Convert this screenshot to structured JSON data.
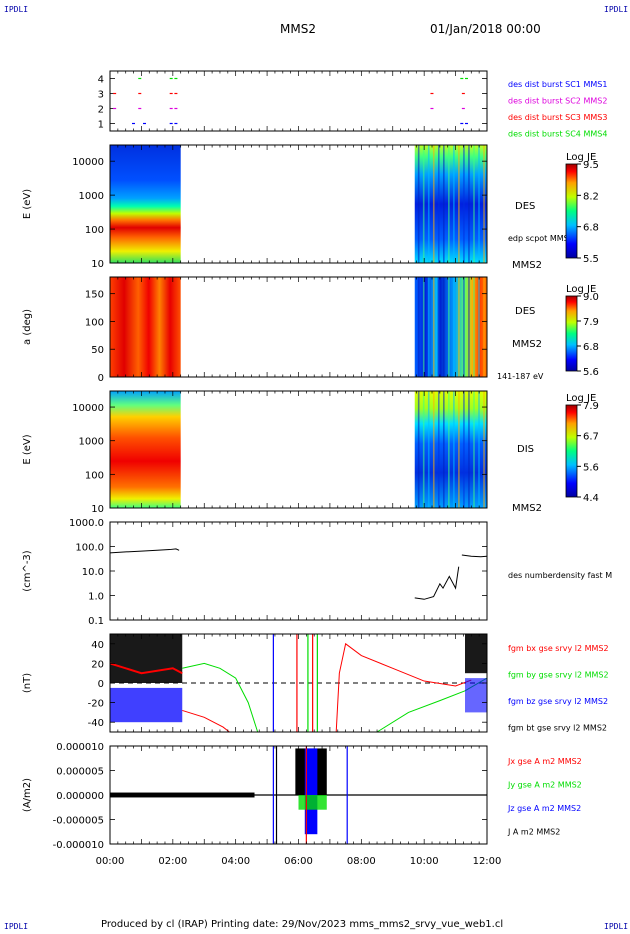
{
  "header": {
    "corner_label": "IPDLI",
    "spacecraft": "MMS2",
    "datetime": "01/Jan/2018 00:00"
  },
  "footer": {
    "text": "Produced by cl (IRAP)   Printing date: 29/Nov/2023   mms_mms2_srvy_vue_web1.cl"
  },
  "colors": {
    "series_red": "#ff0000",
    "series_green": "#00dd00",
    "series_blue": "#0000ff",
    "series_magenta": "#dd00dd",
    "series_black": "#000000"
  },
  "chart_data": [
    {
      "type": "scatter",
      "panel": "burst",
      "ylim": [
        0.5,
        4.5
      ],
      "yticks": [
        "1",
        "2",
        "3",
        "4"
      ],
      "series": [
        {
          "name": "des dist burst SC1 MMS1",
          "color": "#0000ff",
          "level": 1,
          "x": [
            0.7,
            1.05,
            1.9,
            2.05,
            11.15,
            11.3
          ]
        },
        {
          "name": "des dist burst SC2 MMS2",
          "color": "#dd00dd",
          "level": 2,
          "x": [
            0.1,
            0.9,
            1.9,
            2.05,
            10.2,
            11.2
          ]
        },
        {
          "name": "des dist burst SC3 MMS3",
          "color": "#ff0000",
          "level": 3,
          "x": [
            0.1,
            0.9,
            1.9,
            2.05,
            10.2,
            11.2
          ]
        },
        {
          "name": "des dist burst SC4 MMS4",
          "color": "#00dd00",
          "level": 4,
          "x": [
            0.9,
            1.9,
            2.05,
            11.15,
            11.3
          ]
        }
      ]
    },
    {
      "type": "heatmap",
      "panel": "des_energy",
      "ylabel": "E (eV)",
      "ylog": true,
      "ylim": [
        10,
        30000
      ],
      "yticks": [
        "10",
        "100",
        "1000",
        "10000"
      ],
      "intervals": [
        [
          0.0,
          2.25
        ],
        [
          9.7,
          12.0
        ]
      ],
      "right_labels": [
        "DES",
        "edp scpot MMS2",
        "MMS2"
      ],
      "colorbar": {
        "title": "Log JE",
        "ticks": [
          "9.5",
          "8.2",
          "6.8",
          "5.5"
        ],
        "range": [
          5.5,
          9.5
        ]
      }
    },
    {
      "type": "heatmap",
      "panel": "des_pitch",
      "ylabel": "a (deg)",
      "ylim": [
        0,
        180
      ],
      "yticks": [
        "0",
        "50",
        "100",
        "150"
      ],
      "intervals": [
        [
          0.0,
          2.25
        ],
        [
          9.7,
          12.0
        ]
      ],
      "right_labels": [
        "DES",
        "MMS2",
        "141-187 eV"
      ],
      "colorbar": {
        "title": "Log JE",
        "ticks": [
          "9.0",
          "7.9",
          "6.8",
          "5.6"
        ],
        "range": [
          5.6,
          9.0
        ]
      }
    },
    {
      "type": "heatmap",
      "panel": "dis_energy",
      "ylabel": "E (eV)",
      "ylog": true,
      "ylim": [
        10,
        30000
      ],
      "yticks": [
        "10",
        "100",
        "1000",
        "10000"
      ],
      "intervals": [
        [
          0.0,
          2.25
        ],
        [
          9.7,
          12.0
        ]
      ],
      "right_labels": [
        "DIS",
        "MMS2"
      ],
      "colorbar": {
        "title": "Log JE",
        "ticks": [
          "7.9",
          "6.7",
          "5.6",
          "4.4"
        ],
        "range": [
          4.4,
          7.9
        ]
      }
    },
    {
      "type": "line",
      "panel": "density",
      "ylabel": "(cm^-3)",
      "ylog": true,
      "ylim": [
        0.1,
        1000
      ],
      "yticks": [
        "0.1",
        "1.0",
        "10.0",
        "100.0",
        "1000.0"
      ],
      "series": [
        {
          "name": "des numberdensity fast M",
          "color": "#000000",
          "segments": [
            {
              "x": [
                0.0,
                0.5,
                1.0,
                1.5,
                1.9,
                2.1,
                2.2
              ],
              "y": [
                55,
                60,
                65,
                70,
                75,
                80,
                70
              ]
            },
            {
              "x": [
                9.7,
                10.0,
                10.3,
                10.5,
                10.6,
                10.8,
                11.0,
                11.1
              ],
              "y": [
                0.8,
                0.7,
                0.9,
                3,
                2,
                6,
                2,
                15
              ]
            },
            {
              "x": [
                11.2,
                11.5,
                11.8,
                12.0
              ],
              "y": [
                45,
                40,
                38,
                40
              ]
            }
          ]
        }
      ]
    },
    {
      "type": "line",
      "panel": "magnetic_field",
      "ylabel": "(nT)",
      "ylim": [
        -50,
        50
      ],
      "yticks": [
        "-40",
        "-20",
        "0",
        "20",
        "40"
      ],
      "series": [
        {
          "name": "fgm bx gse srvy l2 MMS2",
          "color": "#ff0000"
        },
        {
          "name": "fgm by gse srvy l2 MMS2",
          "color": "#00dd00"
        },
        {
          "name": "fgm bz gse srvy l2 MMS2",
          "color": "#0000ff"
        },
        {
          "name": "fgm bt gse srvy l2 MMS2",
          "color": "#000000"
        }
      ]
    },
    {
      "type": "line",
      "panel": "current_density",
      "ylabel": "(A/m2)",
      "ylim": [
        -1e-05,
        1e-05
      ],
      "yticks": [
        "-0.000010",
        "-0.000005",
        "0.000000",
        "0.000005",
        "0.000010"
      ],
      "series": [
        {
          "name": "Jx gse A m2 MMS2",
          "color": "#ff0000"
        },
        {
          "name": "Jy gse A m2 MMS2",
          "color": "#00dd00"
        },
        {
          "name": "Jz gse A m2 MMS2",
          "color": "#0000ff"
        },
        {
          "name": "J A m2 MMS2",
          "color": "#000000"
        }
      ]
    }
  ],
  "time_axis": {
    "range_hours": [
      0,
      12
    ],
    "ticks": [
      "00:00",
      "02:00",
      "04:00",
      "06:00",
      "08:00",
      "10:00",
      "12:00"
    ]
  }
}
